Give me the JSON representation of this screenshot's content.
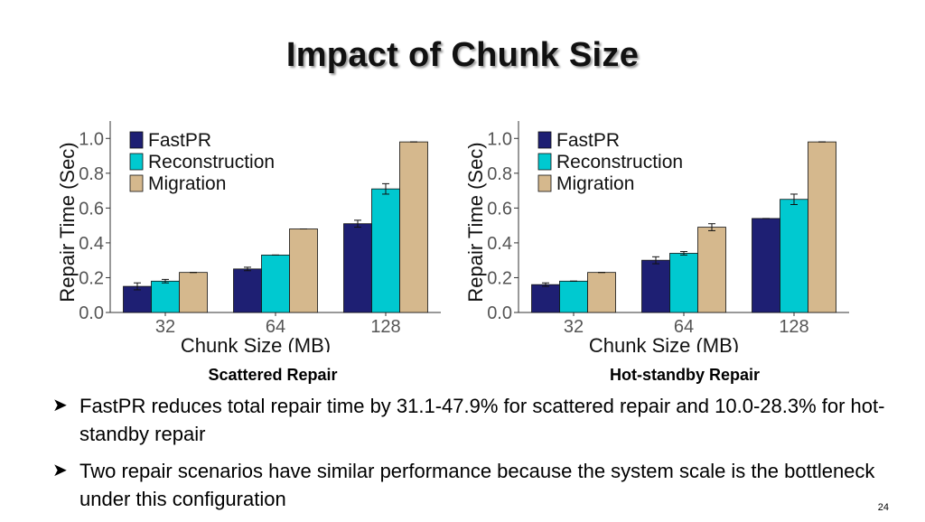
{
  "slide": {
    "title": "Impact of Chunk Size",
    "page_number": "24"
  },
  "captions": [
    "Scattered Repair",
    "Hot-standby Repair"
  ],
  "bullets": [
    "FastPR reduces total repair time by 31.1-47.9% for scattered repair and 10.0-28.3% for hot-standby repair",
    "Two repair scenarios have similar performance because the system scale is the bottleneck under this configuration"
  ],
  "colors": {
    "fastpr": "#1e1f73",
    "reconstruction": "#00c9d0",
    "migration": "#d5b88d"
  },
  "chart_data": [
    {
      "type": "bar",
      "categories": [
        "32",
        "64",
        "128"
      ],
      "xlabel": "Chunk Size (MB)",
      "ylabel": "Repair Time (Sec)",
      "ylim": [
        0,
        1.1
      ],
      "yticks": [
        "0.0",
        "0.2",
        "0.4",
        "0.6",
        "0.8",
        "1.0"
      ],
      "legend_position": "top-left",
      "series": [
        {
          "name": "FastPR",
          "values": [
            0.15,
            0.25,
            0.51
          ],
          "errors": [
            0.02,
            0.01,
            0.02
          ]
        },
        {
          "name": "Reconstruction",
          "values": [
            0.18,
            0.33,
            0.71
          ],
          "errors": [
            0.01,
            0.0,
            0.03
          ]
        },
        {
          "name": "Migration",
          "values": [
            0.23,
            0.48,
            0.98
          ],
          "errors": [
            0.0,
            0.0,
            0.0
          ]
        }
      ]
    },
    {
      "type": "bar",
      "categories": [
        "32",
        "64",
        "128"
      ],
      "xlabel": "Chunk Size (MB)",
      "ylabel": "Repair Time (Sec)",
      "ylim": [
        0,
        1.1
      ],
      "yticks": [
        "0.0",
        "0.2",
        "0.4",
        "0.6",
        "0.8",
        "1.0"
      ],
      "legend_position": "top-left",
      "series": [
        {
          "name": "FastPR",
          "values": [
            0.16,
            0.3,
            0.54
          ],
          "errors": [
            0.01,
            0.02,
            0.0
          ]
        },
        {
          "name": "Reconstruction",
          "values": [
            0.18,
            0.34,
            0.65
          ],
          "errors": [
            0.0,
            0.01,
            0.03
          ]
        },
        {
          "name": "Migration",
          "values": [
            0.23,
            0.49,
            0.98
          ],
          "errors": [
            0.0,
            0.02,
            0.0
          ]
        }
      ]
    }
  ]
}
